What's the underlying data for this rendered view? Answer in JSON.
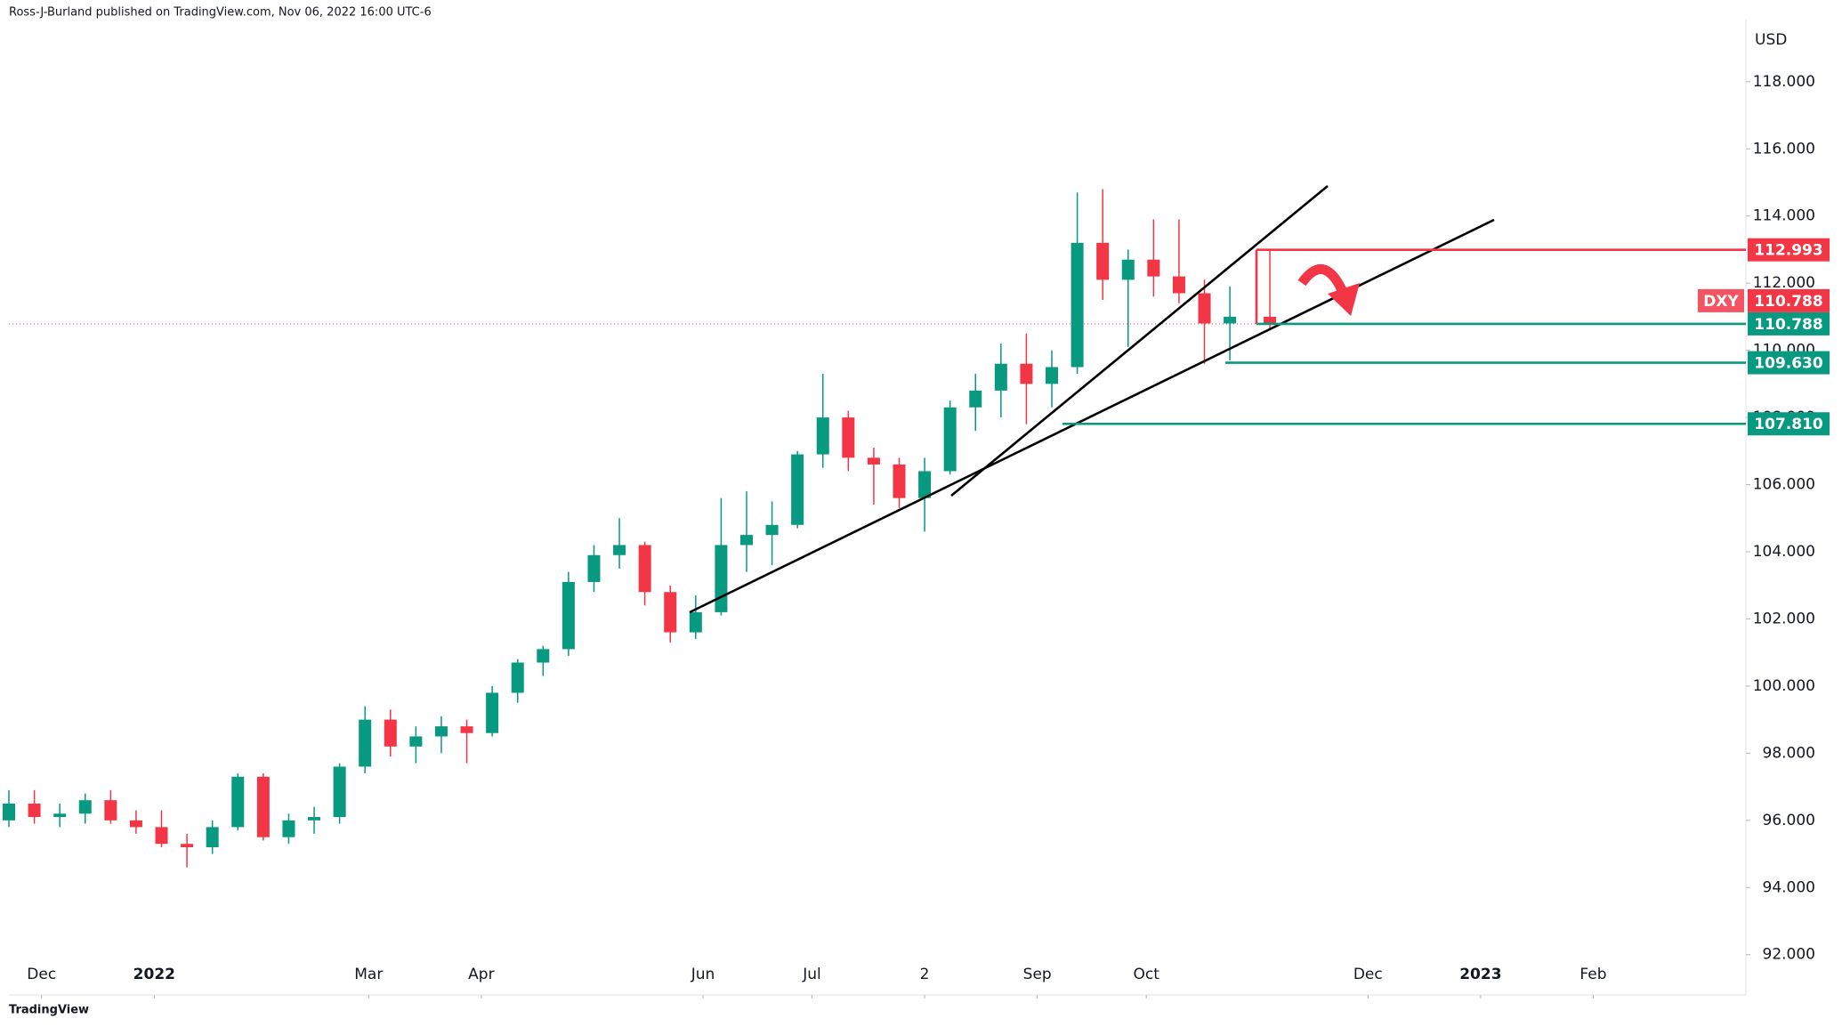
{
  "header": "Ross-J-Burland published on TradingView.com, Nov 06, 2022 16:00 UTC-6",
  "footer": "TradingView",
  "chart_data": {
    "type": "candlestick",
    "unit": "USD",
    "up_color": "#089981",
    "down_color": "#f23645",
    "x": [
      0,
      7,
      14,
      21,
      28,
      35,
      42,
      49,
      56,
      63,
      70,
      77,
      84,
      91,
      98,
      105,
      112,
      119,
      126,
      133,
      140,
      147,
      154,
      161,
      168,
      175,
      182,
      189,
      196,
      203,
      210,
      217,
      224,
      231,
      238,
      245,
      252,
      259,
      266,
      273,
      280,
      287,
      294,
      301,
      308,
      315,
      322,
      329,
      336,
      347
    ],
    "open": [
      96.0,
      96.5,
      96.1,
      96.2,
      96.6,
      96.0,
      95.8,
      95.3,
      95.2,
      95.8,
      97.3,
      95.5,
      96.0,
      96.1,
      97.6,
      99.0,
      98.2,
      98.5,
      98.8,
      98.6,
      99.8,
      100.7,
      101.1,
      103.1,
      103.9,
      104.2,
      102.8,
      101.6,
      102.2,
      104.2,
      104.5,
      104.8,
      106.9,
      108.0,
      106.8,
      106.6,
      105.6,
      106.4,
      108.3,
      108.8,
      109.6,
      109.0,
      109.5,
      113.2,
      112.1,
      112.7,
      112.2,
      111.7,
      110.8,
      111.0
    ],
    "high": [
      96.9,
      96.9,
      96.5,
      96.8,
      96.9,
      96.3,
      96.3,
      95.6,
      96.0,
      97.4,
      97.4,
      96.2,
      96.4,
      97.7,
      99.4,
      99.3,
      98.8,
      99.1,
      99.0,
      100.0,
      100.8,
      101.2,
      103.4,
      104.2,
      105.0,
      104.3,
      103.0,
      102.7,
      105.6,
      105.8,
      105.5,
      107.0,
      109.3,
      108.2,
      107.1,
      106.8,
      106.8,
      108.5,
      109.3,
      110.2,
      110.5,
      110.0,
      114.7,
      114.8,
      113.0,
      113.9,
      113.9,
      112.1,
      111.9,
      112.993
    ],
    "low": [
      95.8,
      95.9,
      95.8,
      95.9,
      95.9,
      95.6,
      95.2,
      94.6,
      95.0,
      95.7,
      95.4,
      95.3,
      95.6,
      95.9,
      97.4,
      97.9,
      97.7,
      98.0,
      97.7,
      98.5,
      99.5,
      100.3,
      100.9,
      102.8,
      103.5,
      102.4,
      101.3,
      101.4,
      102.1,
      103.4,
      103.6,
      104.7,
      106.5,
      106.4,
      105.4,
      105.3,
      104.6,
      106.3,
      107.6,
      108.0,
      107.8,
      108.3,
      109.3,
      111.5,
      110.1,
      111.6,
      111.4,
      109.6,
      109.7,
      110.6
    ],
    "close": [
      96.5,
      96.1,
      96.2,
      96.6,
      96.0,
      95.8,
      95.3,
      95.2,
      95.8,
      97.3,
      95.5,
      96.0,
      96.1,
      97.6,
      99.0,
      98.2,
      98.5,
      98.8,
      98.6,
      99.8,
      100.7,
      101.1,
      103.1,
      103.9,
      104.2,
      102.8,
      101.6,
      102.2,
      104.2,
      104.5,
      104.8,
      106.9,
      108.0,
      106.8,
      106.6,
      105.6,
      106.4,
      108.3,
      108.8,
      109.6,
      109.0,
      109.5,
      113.2,
      112.1,
      112.7,
      112.2,
      111.7,
      110.8,
      111.0,
      110.788
    ],
    "xlim": [
      0,
      478
    ],
    "xticks": [
      {
        "value": 9,
        "label": "Dec"
      },
      {
        "value": 40,
        "label": "2022"
      },
      {
        "value": 99,
        "label": "Mar"
      },
      {
        "value": 130,
        "label": "Apr"
      },
      {
        "value": 191,
        "label": "Jun"
      },
      {
        "value": 221,
        "label": "Jul"
      },
      {
        "value": 252,
        "label": "2"
      },
      {
        "value": 283,
        "label": "Sep"
      },
      {
        "value": 313,
        "label": "Oct"
      },
      {
        "value": 374,
        "label": "Dec"
      },
      {
        "value": 405,
        "label": "2023"
      },
      {
        "value": 436,
        "label": "Feb"
      }
    ],
    "ylim": [
      90.8,
      119.85
    ],
    "yticks": [
      {
        "value": 92,
        "label": "92.000"
      },
      {
        "value": 94,
        "label": "94.000"
      },
      {
        "value": 96,
        "label": "96.000"
      },
      {
        "value": 98,
        "label": "98.000"
      },
      {
        "value": 100,
        "label": "100.000"
      },
      {
        "value": 102,
        "label": "102.000"
      },
      {
        "value": 104,
        "label": "104.000"
      },
      {
        "value": 106,
        "label": "106.000"
      },
      {
        "value": 108,
        "label": "108.000"
      },
      {
        "value": 110,
        "label": "110.000"
      },
      {
        "value": 112,
        "label": "112.000"
      },
      {
        "value": 114,
        "label": "114.000"
      },
      {
        "value": 116,
        "label": "116.000"
      },
      {
        "value": 118,
        "label": "118.000"
      }
    ],
    "levels": [
      {
        "value": 112.993,
        "label": "112.993",
        "color": "#f23645"
      },
      {
        "value": 110.788,
        "label": "110.788",
        "color": "#089981"
      },
      {
        "value": 109.63,
        "label": "109.630",
        "color": "#089981"
      },
      {
        "value": 107.81,
        "label": "107.810",
        "color": "#089981"
      }
    ],
    "current": {
      "symbol": "DXY",
      "value": 110.788,
      "label": "110.788",
      "color": "#f23645"
    }
  }
}
